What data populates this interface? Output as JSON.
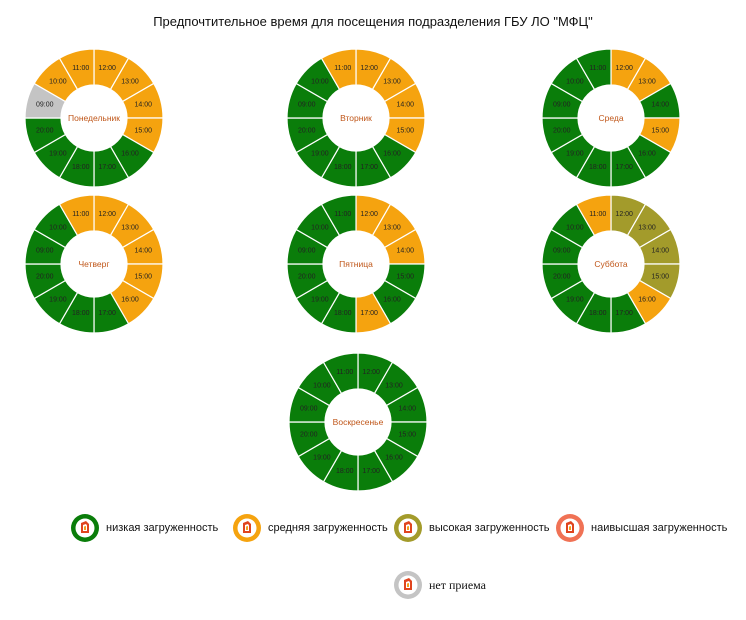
{
  "title": "Предпочтительное время для посещения подразделения ГБУ ЛО \"МФЦ\"",
  "colors": {
    "low": "#0a7d0a",
    "medium": "#f5a30f",
    "high": "#a39b2b",
    "highest": "#f07255",
    "none": "#c4c4c4"
  },
  "chart_data": [
    {
      "type": "donut",
      "day": "Понедельник",
      "slots": [
        {
          "time": "12:00",
          "load": "medium"
        },
        {
          "time": "13:00",
          "load": "medium"
        },
        {
          "time": "14:00",
          "load": "medium"
        },
        {
          "time": "15:00",
          "load": "medium"
        },
        {
          "time": "16:00",
          "load": "low"
        },
        {
          "time": "17:00",
          "load": "low"
        },
        {
          "time": "18:00",
          "load": "low"
        },
        {
          "time": "19:00",
          "load": "low"
        },
        {
          "time": "20:00",
          "load": "low"
        },
        {
          "time": "09:00",
          "load": "none"
        },
        {
          "time": "10:00",
          "load": "medium"
        },
        {
          "time": "11:00",
          "load": "medium"
        }
      ]
    },
    {
      "type": "donut",
      "day": "Вторник",
      "slots": [
        {
          "time": "12:00",
          "load": "medium"
        },
        {
          "time": "13:00",
          "load": "medium"
        },
        {
          "time": "14:00",
          "load": "medium"
        },
        {
          "time": "15:00",
          "load": "medium"
        },
        {
          "time": "16:00",
          "load": "low"
        },
        {
          "time": "17:00",
          "load": "low"
        },
        {
          "time": "18:00",
          "load": "low"
        },
        {
          "time": "19:00",
          "load": "low"
        },
        {
          "time": "20:00",
          "load": "low"
        },
        {
          "time": "09:00",
          "load": "low"
        },
        {
          "time": "10:00",
          "load": "low"
        },
        {
          "time": "11:00",
          "load": "medium"
        }
      ]
    },
    {
      "type": "donut",
      "day": "Среда",
      "slots": [
        {
          "time": "12:00",
          "load": "medium"
        },
        {
          "time": "13:00",
          "load": "medium"
        },
        {
          "time": "14:00",
          "load": "low"
        },
        {
          "time": "15:00",
          "load": "medium"
        },
        {
          "time": "16:00",
          "load": "low"
        },
        {
          "time": "17:00",
          "load": "low"
        },
        {
          "time": "18:00",
          "load": "low"
        },
        {
          "time": "19:00",
          "load": "low"
        },
        {
          "time": "20:00",
          "load": "low"
        },
        {
          "time": "09:00",
          "load": "low"
        },
        {
          "time": "10:00",
          "load": "low"
        },
        {
          "time": "11:00",
          "load": "low"
        }
      ]
    },
    {
      "type": "donut",
      "day": "Четверг",
      "slots": [
        {
          "time": "12:00",
          "load": "medium"
        },
        {
          "time": "13:00",
          "load": "medium"
        },
        {
          "time": "14:00",
          "load": "medium"
        },
        {
          "time": "15:00",
          "load": "medium"
        },
        {
          "time": "16:00",
          "load": "medium"
        },
        {
          "time": "17:00",
          "load": "low"
        },
        {
          "time": "18:00",
          "load": "low"
        },
        {
          "time": "19:00",
          "load": "low"
        },
        {
          "time": "20:00",
          "load": "low"
        },
        {
          "time": "09:00",
          "load": "low"
        },
        {
          "time": "10:00",
          "load": "low"
        },
        {
          "time": "11:00",
          "load": "medium"
        }
      ]
    },
    {
      "type": "donut",
      "day": "Пятница",
      "slots": [
        {
          "time": "12:00",
          "load": "medium"
        },
        {
          "time": "13:00",
          "load": "medium"
        },
        {
          "time": "14:00",
          "load": "medium"
        },
        {
          "time": "15:00",
          "load": "low"
        },
        {
          "time": "16:00",
          "load": "low"
        },
        {
          "time": "17:00",
          "load": "medium"
        },
        {
          "time": "18:00",
          "load": "low"
        },
        {
          "time": "19:00",
          "load": "low"
        },
        {
          "time": "20:00",
          "load": "low"
        },
        {
          "time": "09:00",
          "load": "low"
        },
        {
          "time": "10:00",
          "load": "low"
        },
        {
          "time": "11:00",
          "load": "low"
        }
      ]
    },
    {
      "type": "donut",
      "day": "Суббота",
      "slots": [
        {
          "time": "12:00",
          "load": "high"
        },
        {
          "time": "13:00",
          "load": "high"
        },
        {
          "time": "14:00",
          "load": "high"
        },
        {
          "time": "15:00",
          "load": "high"
        },
        {
          "time": "16:00",
          "load": "medium"
        },
        {
          "time": "17:00",
          "load": "low"
        },
        {
          "time": "18:00",
          "load": "low"
        },
        {
          "time": "19:00",
          "load": "low"
        },
        {
          "time": "20:00",
          "load": "low"
        },
        {
          "time": "09:00",
          "load": "low"
        },
        {
          "time": "10:00",
          "load": "low"
        },
        {
          "time": "11:00",
          "load": "medium"
        }
      ]
    },
    {
      "type": "donut",
      "day": "Воскресенье",
      "slots": [
        {
          "time": "12:00",
          "load": "low"
        },
        {
          "time": "13:00",
          "load": "low"
        },
        {
          "time": "14:00",
          "load": "low"
        },
        {
          "time": "15:00",
          "load": "low"
        },
        {
          "time": "16:00",
          "load": "low"
        },
        {
          "time": "17:00",
          "load": "low"
        },
        {
          "time": "18:00",
          "load": "low"
        },
        {
          "time": "19:00",
          "load": "low"
        },
        {
          "time": "20:00",
          "load": "low"
        },
        {
          "time": "09:00",
          "load": "low"
        },
        {
          "time": "10:00",
          "load": "low"
        },
        {
          "time": "11:00",
          "load": "low"
        }
      ]
    }
  ],
  "legend": [
    {
      "key": "low",
      "label": "низкая загруженность",
      "icon": "low-load-icon"
    },
    {
      "key": "medium",
      "label": "средняя загруженность",
      "icon": "medium-load-icon"
    },
    {
      "key": "high",
      "label": "высокая загруженность",
      "icon": "high-load-icon"
    },
    {
      "key": "highest",
      "label": "наивысшая загруженность",
      "icon": "highest-load-icon"
    },
    {
      "key": "none",
      "label": "нет приема",
      "icon": "no-reception-icon"
    }
  ]
}
